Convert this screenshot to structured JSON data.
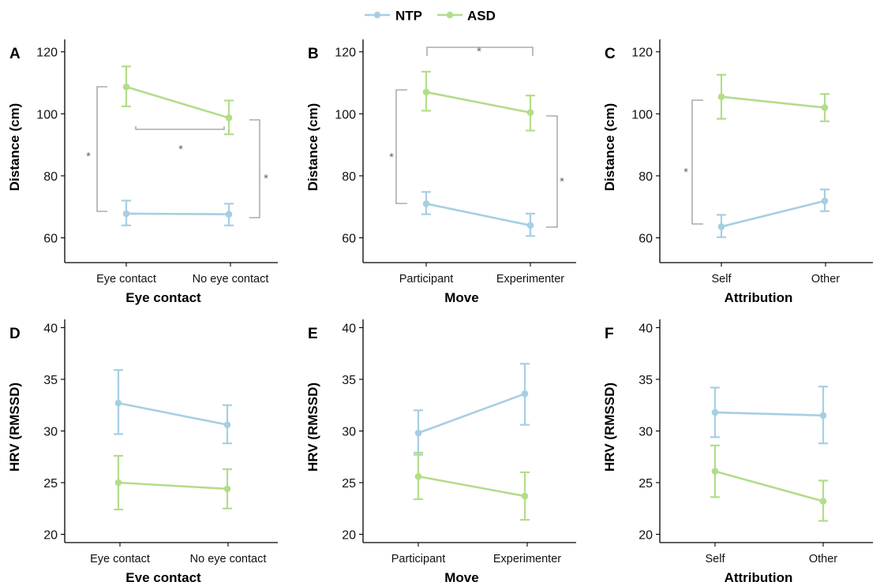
{
  "legend": {
    "entries": [
      {
        "name": "NTP",
        "color": "#a6cfe3"
      },
      {
        "name": "ASD",
        "color": "#b2dd8a"
      }
    ]
  },
  "chart_data": [
    {
      "type": "line",
      "panel": "A",
      "categories": [
        "Eye contact",
        "No eye contact"
      ],
      "xlabel": "Eye contact",
      "ylabel": "Distance (cm)",
      "ylim": [
        52,
        124
      ],
      "yticks": [
        60,
        80,
        100,
        120
      ],
      "series": [
        {
          "name": "NTP",
          "values": [
            67.8,
            67.6
          ],
          "err_low": [
            64.0,
            64.0
          ],
          "err_high": [
            72.0,
            71.0
          ]
        },
        {
          "name": "ASD",
          "values": [
            108.7,
            98.7
          ],
          "err_low": [
            102.4,
            93.4
          ],
          "err_high": [
            115.3,
            104.3
          ]
        }
      ],
      "significance": [
        {
          "between": "NTP vs ASD at Eye contact",
          "label": "*"
        },
        {
          "between": "Eye contact vs No eye contact",
          "label": "*"
        },
        {
          "between": "NTP vs ASD at No eye contact",
          "label": "*"
        }
      ]
    },
    {
      "type": "line",
      "panel": "B",
      "categories": [
        "Participant",
        "Experimenter"
      ],
      "xlabel": "Move",
      "ylabel": "Distance (cm)",
      "ylim": [
        52,
        124
      ],
      "yticks": [
        60,
        80,
        100,
        120
      ],
      "series": [
        {
          "name": "NTP",
          "values": [
            71.0,
            64.0
          ],
          "err_low": [
            67.6,
            60.6
          ],
          "err_high": [
            74.8,
            67.8
          ]
        },
        {
          "name": "ASD",
          "values": [
            107.0,
            100.4
          ],
          "err_low": [
            101.0,
            94.6
          ],
          "err_high": [
            113.6,
            105.9
          ]
        }
      ],
      "significance": [
        {
          "between": "NTP vs ASD at Participant",
          "label": "*"
        },
        {
          "between": "Participant vs Experimenter",
          "label": "*"
        },
        {
          "between": "NTP vs ASD at Experimenter",
          "label": "*"
        }
      ]
    },
    {
      "type": "line",
      "panel": "C",
      "categories": [
        "Self",
        "Other"
      ],
      "xlabel": "Attribution",
      "ylabel": "Distance (cm)",
      "ylim": [
        52,
        124
      ],
      "yticks": [
        60,
        80,
        100,
        120
      ],
      "series": [
        {
          "name": "NTP",
          "values": [
            63.6,
            71.9
          ],
          "err_low": [
            60.2,
            68.6
          ],
          "err_high": [
            67.4,
            75.6
          ]
        },
        {
          "name": "ASD",
          "values": [
            105.5,
            102.0
          ],
          "err_low": [
            98.4,
            97.6
          ],
          "err_high": [
            112.6,
            106.4
          ]
        }
      ],
      "significance": [
        {
          "between": "NTP vs ASD at Self",
          "label": "*"
        }
      ]
    },
    {
      "type": "line",
      "panel": "D",
      "categories": [
        "Eye contact",
        "No eye contact"
      ],
      "xlabel": "Eye contact",
      "ylabel": "HRV (RMSSD)",
      "ylim": [
        19.2,
        40.8
      ],
      "yticks": [
        20,
        25,
        30,
        35,
        40
      ],
      "series": [
        {
          "name": "NTP",
          "values": [
            32.7,
            30.6
          ],
          "err_low": [
            29.7,
            28.8
          ],
          "err_high": [
            35.9,
            32.5
          ]
        },
        {
          "name": "ASD",
          "values": [
            25.0,
            24.4
          ],
          "err_low": [
            22.4,
            22.5
          ],
          "err_high": [
            27.6,
            26.3
          ]
        }
      ],
      "significance": []
    },
    {
      "type": "line",
      "panel": "E",
      "categories": [
        "Participant",
        "Experimenter"
      ],
      "xlabel": "Move",
      "ylabel": "HRV (RMSSD)",
      "ylim": [
        19.2,
        40.8
      ],
      "yticks": [
        20,
        25,
        30,
        35,
        40
      ],
      "series": [
        {
          "name": "NTP",
          "values": [
            29.8,
            33.6
          ],
          "err_low": [
            27.7,
            30.6
          ],
          "err_high": [
            32.0,
            36.5
          ]
        },
        {
          "name": "ASD",
          "values": [
            25.6,
            23.7
          ],
          "err_low": [
            23.4,
            21.4
          ],
          "err_high": [
            27.9,
            26.0
          ]
        }
      ],
      "significance": []
    },
    {
      "type": "line",
      "panel": "F",
      "categories": [
        "Self",
        "Other"
      ],
      "xlabel": "Attribution",
      "ylabel": "HRV (RMSSD)",
      "ylim": [
        19.2,
        40.8
      ],
      "yticks": [
        20,
        25,
        30,
        35,
        40
      ],
      "series": [
        {
          "name": "NTP",
          "values": [
            31.8,
            31.5
          ],
          "err_low": [
            29.4,
            28.8
          ],
          "err_high": [
            34.2,
            34.3
          ]
        },
        {
          "name": "ASD",
          "values": [
            26.1,
            23.2
          ],
          "err_low": [
            23.6,
            21.3
          ],
          "err_high": [
            28.6,
            25.2
          ]
        }
      ],
      "significance": []
    }
  ]
}
